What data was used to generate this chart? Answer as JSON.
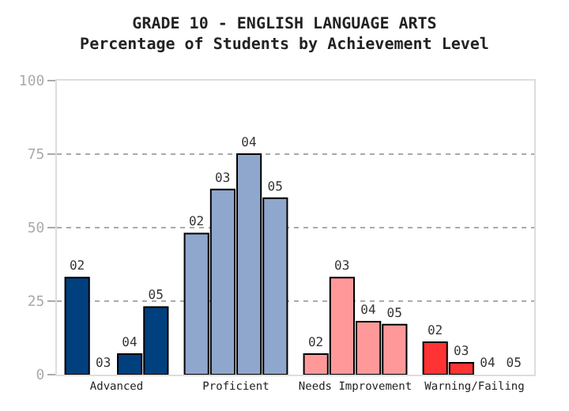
{
  "chart_data": {
    "type": "bar",
    "title": "GRADE 10 - ENGLISH LANGUAGE ARTS",
    "subtitle": "Percentage of Students by Achievement Level",
    "categories": [
      "Advanced",
      "Proficient",
      "Needs Improvement",
      "Warning/Failing"
    ],
    "series": [
      {
        "name": "02",
        "colors": [
          "#00407f",
          "#8fa7cc",
          "#ff9999",
          "#ff3333"
        ],
        "values": [
          33,
          48,
          7,
          11
        ]
      },
      {
        "name": "03",
        "colors": [
          "#00407f",
          "#8fa7cc",
          "#ff9999",
          "#ff3333"
        ],
        "values": [
          0,
          63,
          33,
          4
        ]
      },
      {
        "name": "04",
        "colors": [
          "#00407f",
          "#8fa7cc",
          "#ff9999",
          "#ff3333"
        ],
        "values": [
          7,
          75,
          18,
          0
        ]
      },
      {
        "name": "05",
        "colors": [
          "#00407f",
          "#8fa7cc",
          "#ff9999",
          "#ff3333"
        ],
        "values": [
          23,
          60,
          17,
          0
        ]
      }
    ],
    "ylim": [
      0,
      100
    ],
    "yticks": [
      0,
      25,
      50,
      75,
      100
    ],
    "grid": "y",
    "legend": false
  }
}
